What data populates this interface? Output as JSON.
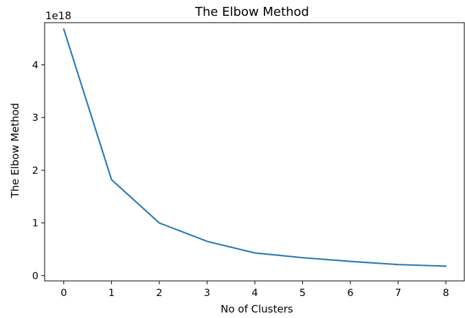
{
  "chart_data": {
    "type": "line",
    "title": "The Elbow Method",
    "xlabel": "No of Clusters",
    "ylabel": "The Elbow Method",
    "y_offset_label": "1e18",
    "x": [
      0,
      1,
      2,
      3,
      4,
      5,
      6,
      7,
      8
    ],
    "xticks": [
      "0",
      "1",
      "2",
      "3",
      "4",
      "5",
      "6",
      "7",
      "8"
    ],
    "yticks": [
      "0",
      "1",
      "2",
      "3",
      "4"
    ],
    "xlim": [
      -0.4,
      8.4
    ],
    "ylim": [
      -0.1,
      4.8
    ],
    "y_scale_note_value": 1e+18,
    "grid": false,
    "series": [
      {
        "values": [
          4.68,
          1.82,
          1.0,
          0.65,
          0.43,
          0.34,
          0.27,
          0.21,
          0.18
        ],
        "color": "#2e7bb4"
      }
    ]
  }
}
